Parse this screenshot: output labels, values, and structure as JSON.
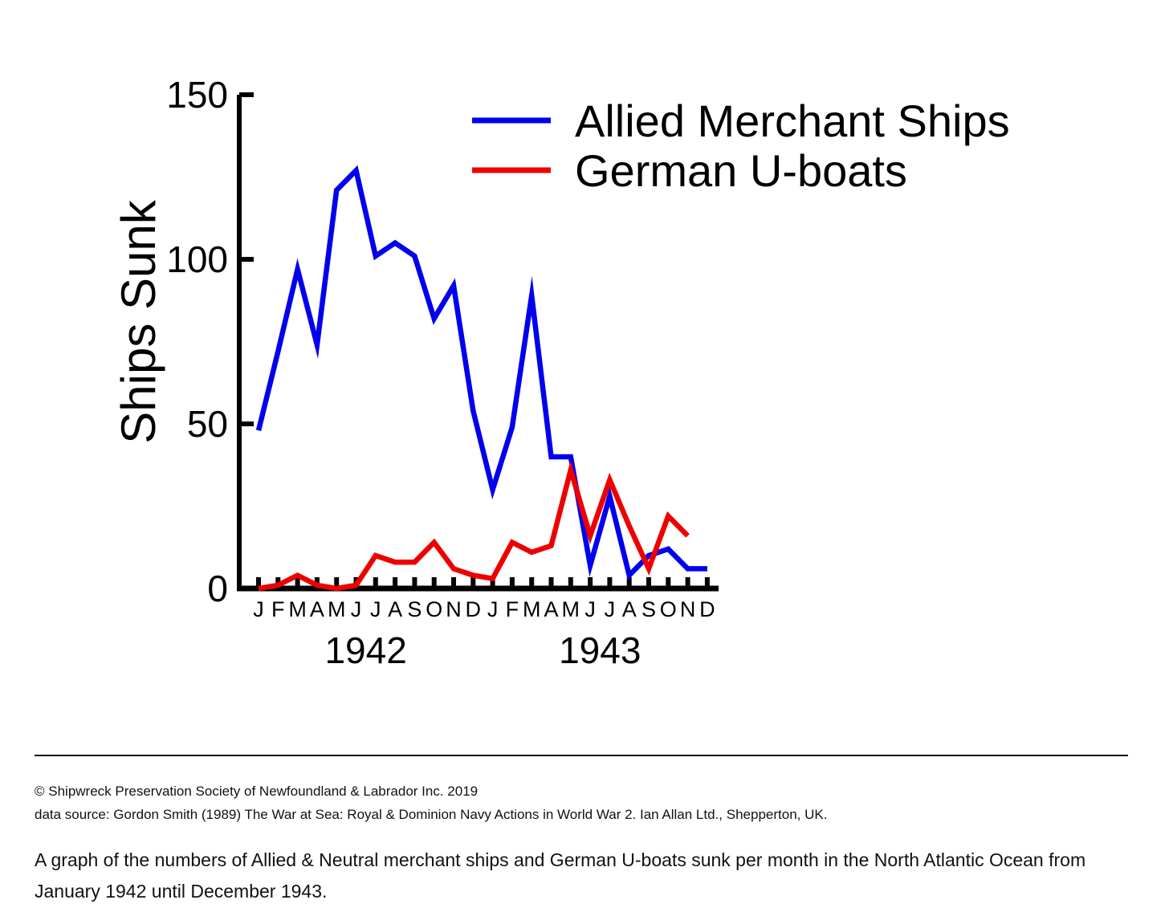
{
  "chart_data": {
    "type": "line",
    "ylabel": "Ships Sunk",
    "ylim": [
      0,
      150
    ],
    "yticks": [
      0,
      50,
      100,
      150
    ],
    "x_month_labels": [
      "J",
      "F",
      "M",
      "A",
      "M",
      "J",
      "J",
      "A",
      "S",
      "O",
      "N",
      "D",
      "J",
      "F",
      "M",
      "A",
      "M",
      "J",
      "J",
      "A",
      "S",
      "O",
      "N",
      "D"
    ],
    "x_year_labels": [
      "1942",
      "1943"
    ],
    "legend_position": "top-right",
    "grid": false,
    "series": [
      {
        "name": "Allied Merchant Ships",
        "color": "#0000ee",
        "values": [
          48,
          72,
          97,
          74,
          121,
          127,
          101,
          105,
          101,
          82,
          92,
          54,
          30,
          49,
          89,
          40,
          40,
          7,
          28,
          4,
          10,
          12,
          6,
          6
        ]
      },
      {
        "name": "German U-boats",
        "color": "#ee0000",
        "values": [
          0,
          1,
          4,
          1,
          0,
          1,
          10,
          8,
          8,
          14,
          6,
          4,
          3,
          14,
          11,
          13,
          36,
          16,
          33,
          19,
          6,
          22,
          16,
          null
        ]
      }
    ]
  },
  "footer": {
    "copyright": "© Shipwreck Preservation Society of Newfoundland & Labrador Inc. 2019",
    "source": "data source: Gordon Smith (1989) The War at Sea: Royal & Dominion Navy Actions in World War 2. Ian Allan Ltd., Shepperton, UK.",
    "caption": "A graph of the numbers of Allied & Neutral merchant ships and German U-boats sunk per month in the North Atlantic Ocean from January 1942 until December 1943."
  }
}
